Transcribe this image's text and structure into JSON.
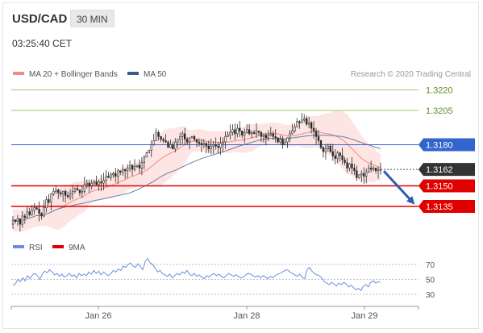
{
  "header": {
    "pair": "USD/CAD",
    "timeframe": "30 MIN",
    "time": "03:25:40 CET"
  },
  "legend": {
    "ma20_label": "MA 20 + Bollinger Bands",
    "ma50_label": "MA 50",
    "credit": "Research © 2020 Trading Central"
  },
  "rsi_legend": {
    "rsi_label": "RSI",
    "ma_label": "9MA"
  },
  "colors": {
    "green_level": "#9ccc65",
    "green_text": "#5a8f1e",
    "blue_level": "#3366cc",
    "red_level": "#e00000",
    "candle": "#2b2b2b",
    "ma20": "#f28b82",
    "band_fill": "#fde0de",
    "ma50": "#6b7fa8",
    "rsi": "#6c8ee0",
    "arrow": "#2e5fa8",
    "current_tag": "#333333"
  },
  "chart_data": [
    {
      "type": "candlestick",
      "title": "USD/CAD",
      "x_ticks": [
        "Jan 26",
        "Jan 28",
        "Jan 29"
      ],
      "ylim": [
        1.31,
        1.324
      ],
      "levels": [
        {
          "value": 1.322,
          "label": "1.3220",
          "style": "green"
        },
        {
          "value": 1.3205,
          "label": "1.3205",
          "style": "green"
        },
        {
          "value": 1.318,
          "label": "1.3180",
          "style": "blue"
        },
        {
          "value": 1.3162,
          "label": "1.3162",
          "style": "current"
        },
        {
          "value": 1.315,
          "label": "1.3150",
          "style": "red"
        },
        {
          "value": 1.3135,
          "label": "1.3135",
          "style": "red"
        }
      ],
      "forecast_arrow": {
        "from": 1.3162,
        "to": 1.3135
      },
      "series": [
        {
          "name": "MA 20 + Bollinger Bands"
        },
        {
          "name": "MA 50"
        }
      ],
      "close": [
        1.3125,
        1.3124,
        1.3126,
        1.3122,
        1.3128,
        1.3127,
        1.3131,
        1.3129,
        1.3132,
        1.3134,
        1.3133,
        1.313,
        1.3128,
        1.3134,
        1.314,
        1.3138,
        1.3144,
        1.3146,
        1.3147,
        1.3145,
        1.3144,
        1.3146,
        1.3143,
        1.3142,
        1.3144,
        1.3146,
        1.3148,
        1.3147,
        1.3145,
        1.3146,
        1.3151,
        1.3152,
        1.315,
        1.3152,
        1.3153,
        1.3151,
        1.3153,
        1.3152,
        1.3154,
        1.3157,
        1.3156,
        1.3158,
        1.3159,
        1.3157,
        1.3161,
        1.316,
        1.3162,
        1.3161,
        1.3163,
        1.3165,
        1.3162,
        1.3164,
        1.3165,
        1.3163,
        1.3167,
        1.3171,
        1.3174,
        1.3176,
        1.318,
        1.3183,
        1.3189,
        1.3186,
        1.3184,
        1.3183,
        1.3182,
        1.3178,
        1.318,
        1.3177,
        1.3182,
        1.3184,
        1.3186,
        1.3188,
        1.3184,
        1.3182,
        1.3185,
        1.3186,
        1.3184,
        1.3182,
        1.3181,
        1.318,
        1.3181,
        1.3179,
        1.3177,
        1.3179,
        1.318,
        1.3179,
        1.3178,
        1.3181,
        1.3182,
        1.3186,
        1.3187,
        1.3189,
        1.3191,
        1.3188,
        1.3192,
        1.319,
        1.3187,
        1.3189,
        1.3191,
        1.3188,
        1.3189,
        1.3188,
        1.319,
        1.3189,
        1.3186,
        1.3187,
        1.3185,
        1.3187,
        1.3188,
        1.3186,
        1.3185,
        1.3182,
        1.3184,
        1.318,
        1.3182,
        1.3185,
        1.3188,
        1.319,
        1.3193,
        1.3197,
        1.3196,
        1.3198,
        1.3199,
        1.3195,
        1.3196,
        1.3192,
        1.319,
        1.3186,
        1.3183,
        1.3178,
        1.3175,
        1.3177,
        1.3179,
        1.3175,
        1.3172,
        1.317,
        1.3174,
        1.3172,
        1.3169,
        1.3167,
        1.3163,
        1.3166,
        1.3163,
        1.3161,
        1.3156,
        1.3158,
        1.3159,
        1.3157,
        1.316,
        1.3163,
        1.3162,
        1.3163,
        1.3161,
        1.3162,
        1.3162
      ]
    },
    {
      "type": "line",
      "title": "RSI",
      "yticks": [
        70,
        50,
        30
      ],
      "ylim": [
        20,
        80
      ],
      "series": [
        {
          "name": "RSI",
          "values": [
            42,
            44,
            50,
            47,
            52,
            48,
            55,
            51,
            56,
            58,
            55,
            50,
            57,
            61,
            59,
            63,
            60,
            56,
            58,
            54,
            57,
            53,
            55,
            58,
            54,
            56,
            52,
            58,
            55,
            57,
            55,
            60,
            57,
            62,
            58,
            61,
            56,
            60,
            57,
            55,
            58,
            62,
            60,
            64,
            62,
            68,
            66,
            70,
            72,
            68,
            66,
            71,
            67,
            63,
            74,
            78,
            72,
            70,
            65,
            60,
            62,
            58,
            56,
            54,
            57,
            52,
            55,
            58,
            56,
            60,
            58,
            62,
            57,
            55,
            58,
            54,
            56,
            53,
            51,
            55,
            53,
            56,
            58,
            55,
            57,
            54,
            52,
            55,
            58,
            56,
            54,
            56,
            54,
            52,
            53,
            56,
            58,
            57,
            55,
            53,
            55,
            52,
            55,
            53,
            51,
            54,
            52,
            55,
            57,
            58,
            60,
            62,
            63,
            60,
            58,
            56,
            54,
            57,
            53,
            51,
            63,
            66,
            61,
            58,
            56,
            55,
            52,
            47,
            45,
            43,
            46,
            44,
            41,
            45,
            43,
            46,
            44,
            40,
            42,
            39,
            36,
            38,
            35,
            41,
            43,
            40,
            46,
            48,
            45,
            47,
            46
          ]
        },
        {
          "name": "9MA"
        }
      ]
    }
  ]
}
